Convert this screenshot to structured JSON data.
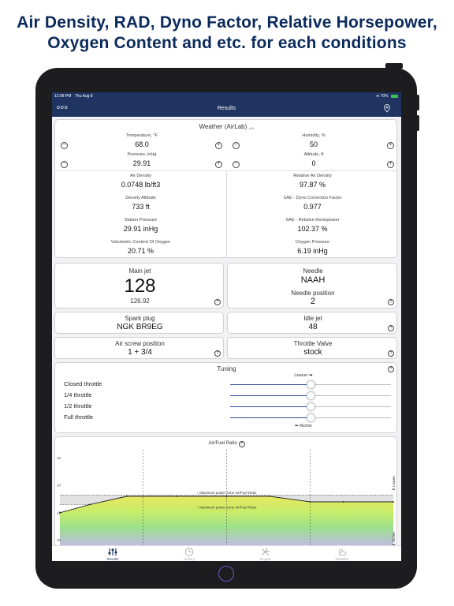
{
  "headline": {
    "line1": "Air Density, RAD, Dyno Factor, Relative Horsepower,",
    "line2": "Oxygen Content and etc. for each conditions"
  },
  "statusbar": {
    "time": "12:08 PM",
    "date": "Thu Aug 8",
    "battery": "70%"
  },
  "navbar": {
    "title": "Results",
    "more": "ooo"
  },
  "weather": {
    "header": "Weather (AirLab)",
    "temperature": {
      "label": "Temperature, °F",
      "value": "68.0"
    },
    "humidity": {
      "label": "Humidity, %",
      "value": "50"
    },
    "pressure": {
      "label": "Pressure, inHg",
      "value": "29.91"
    },
    "altitude": {
      "label": "Altitude, ft",
      "value": "0"
    },
    "air_density": {
      "label": "Air Density",
      "value": "0.0748 lb/ft3"
    },
    "relative_air_density": {
      "label": "Relative Air Density",
      "value": "97.87 %"
    },
    "density_altitude": {
      "label": "Density Altitude",
      "value": "733 ft"
    },
    "sae_dyno": {
      "label": "SAE - Dyno Correction Factor",
      "value": "0.977"
    },
    "station_pressure": {
      "label": "Station Pressure",
      "value": "29.91 inHg"
    },
    "sae_hp": {
      "label": "SAE - Relative Horsepower",
      "value": "102.37 %"
    },
    "vol_oxygen": {
      "label": "Volumetric Content Of Oxygen",
      "value": "20.71 %"
    },
    "oxygen_pressure": {
      "label": "Oxygen Pressure",
      "value": "6.19 inHg"
    }
  },
  "jetting": {
    "main_jet": {
      "label": "Main jet",
      "value": "128",
      "sub": "126.92"
    },
    "needle": {
      "label": "Needle",
      "value": "NAAH",
      "pos_label": "Needle position",
      "pos_value": "2"
    },
    "spark_plug": {
      "label": "Spark plug",
      "value": "NGK BR9EG"
    },
    "idle_jet": {
      "label": "Idle jet",
      "value": "48"
    },
    "air_screw": {
      "label": "Air screw position",
      "value": "1 + 3/4"
    },
    "throttle_valve": {
      "label": "Throttle Valve",
      "value": "stock"
    }
  },
  "tuning": {
    "title": "Tuning",
    "leaner": "Leaner ➡",
    "richer": "⬅ Richer",
    "rows": [
      {
        "label": "Closed throttle",
        "level": 0.5
      },
      {
        "label": "1/4 throttle",
        "level": 0.5
      },
      {
        "label": "1/2 throttle",
        "level": 0.5
      },
      {
        "label": "Full throttle",
        "level": 0.5
      }
    ]
  },
  "chart_data": {
    "type": "line",
    "title": "Air/Fuel Ratio",
    "ylim": [
      9.5,
      16.5
    ],
    "yticks": [
      "16",
      "14",
      "12",
      "10"
    ],
    "annotations": [
      "↓ Maximum power zone Air/Fuel Ratio",
      "↑ Maximum power zone Air/Fuel Ratio"
    ],
    "side_labels": {
      "top": "Leaner",
      "bottom": "Richer"
    },
    "max_power_zone": [
      12.6,
      13.3
    ],
    "series": [
      {
        "values_x": [
          0,
          0.09,
          0.2,
          0.35,
          0.5,
          0.63,
          0.75,
          0.85,
          1.0
        ],
        "values": [
          12.0,
          12.6,
          13.2,
          13.2,
          13.2,
          13.2,
          12.8,
          12.8,
          12.8
        ]
      }
    ]
  },
  "tabs": [
    {
      "label": "Results"
    },
    {
      "label": "History"
    },
    {
      "label": "Engine"
    },
    {
      "label": "Weather"
    }
  ]
}
